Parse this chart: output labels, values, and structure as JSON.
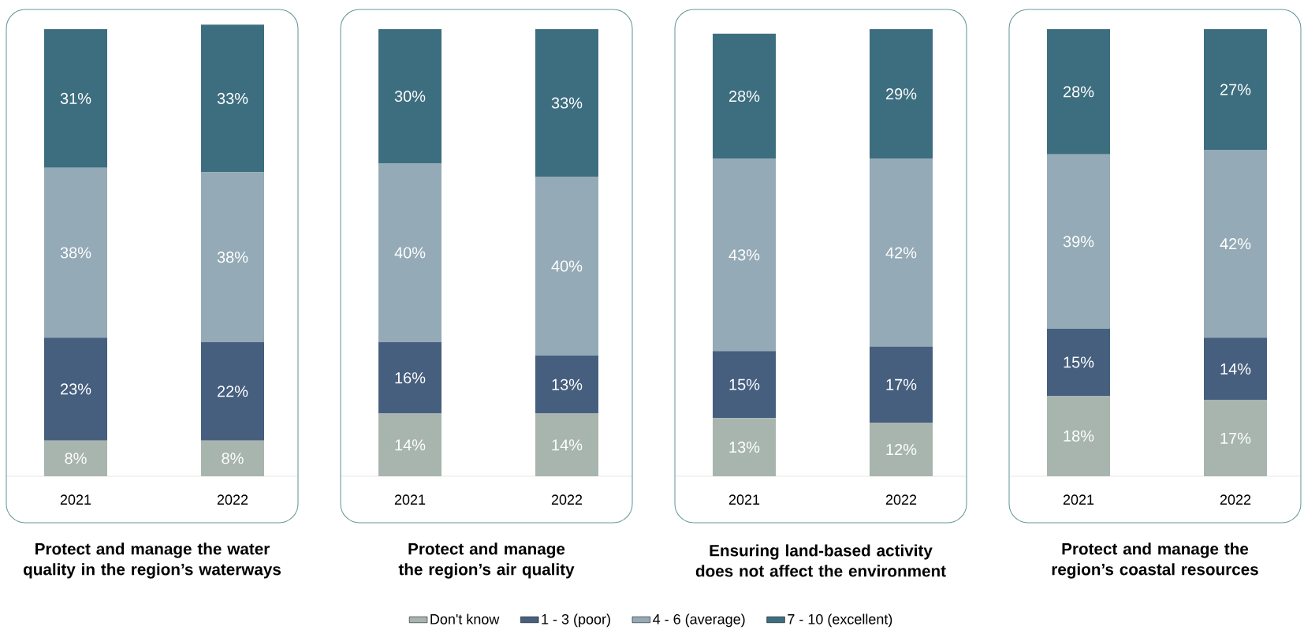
{
  "chart_data": [
    {
      "type": "bar",
      "stacked": true,
      "title": "Protect and manage the water quality in the region’s waterways",
      "categories": [
        "2021",
        "2022"
      ],
      "series": [
        {
          "color": "#a7b5ae",
          "values": [
            8,
            8
          ],
          "value_labels": [
            "8%",
            "8%"
          ]
        },
        {
          "color": "#465f7e",
          "values": [
            23,
            22
          ],
          "value_labels": [
            "23%",
            "22%"
          ]
        },
        {
          "color": "#94aab6",
          "values": [
            38,
            38
          ],
          "value_labels": [
            "38%",
            "38%"
          ]
        },
        {
          "color": "#3d6e7f",
          "values": [
            31,
            33
          ],
          "value_labels": [
            "31%",
            "33%"
          ]
        }
      ]
    },
    {
      "type": "bar",
      "stacked": true,
      "title": "Protect and manage the region’s air quality",
      "categories": [
        "2021",
        "2022"
      ],
      "series": [
        {
          "color": "#a7b5ae",
          "values": [
            14,
            14
          ],
          "value_labels": [
            "14%",
            "14%"
          ]
        },
        {
          "color": "#465f7e",
          "values": [
            16,
            13
          ],
          "value_labels": [
            "16%",
            "13%"
          ]
        },
        {
          "color": "#94aab6",
          "values": [
            40,
            40
          ],
          "value_labels": [
            "40%",
            "40%"
          ]
        },
        {
          "color": "#3d6e7f",
          "values": [
            30,
            33
          ],
          "value_labels": [
            "30%",
            "33%"
          ]
        }
      ]
    },
    {
      "type": "bar",
      "stacked": true,
      "title": "Ensuring land-based activity does not affect the environment",
      "categories": [
        "2021",
        "2022"
      ],
      "series": [
        {
          "color": "#a7b5ae",
          "values": [
            13,
            12
          ],
          "value_labels": [
            "13%",
            "12%"
          ]
        },
        {
          "color": "#465f7e",
          "values": [
            15,
            17
          ],
          "value_labels": [
            "15%",
            "17%"
          ]
        },
        {
          "color": "#94aab6",
          "values": [
            43,
            42
          ],
          "value_labels": [
            "43%",
            "42%"
          ]
        },
        {
          "color": "#3d6e7f",
          "values": [
            28,
            29
          ],
          "value_labels": [
            "28%",
            "29%"
          ]
        }
      ]
    },
    {
      "type": "bar",
      "stacked": true,
      "legend": "bottom",
      "title": "Protect and manage the region’s coastal resources",
      "categories": [
        "2021",
        "2022"
      ],
      "series": [
        {
          "name": "Don't know",
          "color": "#a7b5ae",
          "values": [
            18,
            17
          ],
          "value_labels": [
            "18%",
            "17%"
          ]
        },
        {
          "name": "1 - 3 (poor)",
          "color": "#465f7e",
          "values": [
            15,
            14
          ],
          "value_labels": [
            "15%",
            "14%"
          ]
        },
        {
          "name": "4 - 6 (average)",
          "color": "#94aab6",
          "values": [
            39,
            42
          ],
          "value_labels": [
            "39%",
            "42%"
          ]
        },
        {
          "name": "7 - 10 (excellent)",
          "color": "#3d6e7f",
          "values": [
            28,
            27
          ],
          "value_labels": [
            "28%",
            "27%"
          ]
        }
      ]
    }
  ]
}
